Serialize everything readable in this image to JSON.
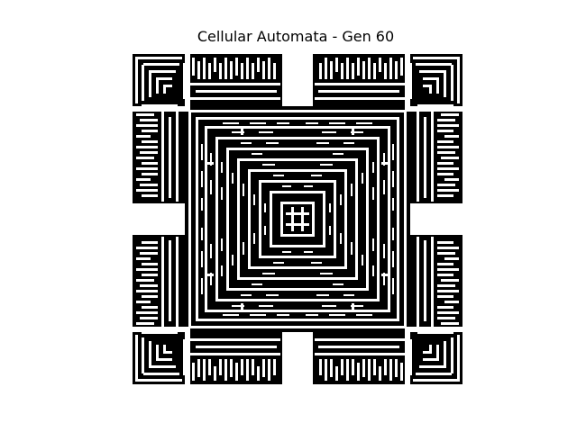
{
  "figure": {
    "title": "Cellular Automata - Gen 60"
  },
  "colors": {
    "background": "#ffffff",
    "alive_cell": "#000000",
    "dead_cell": "#ffffff"
  }
}
